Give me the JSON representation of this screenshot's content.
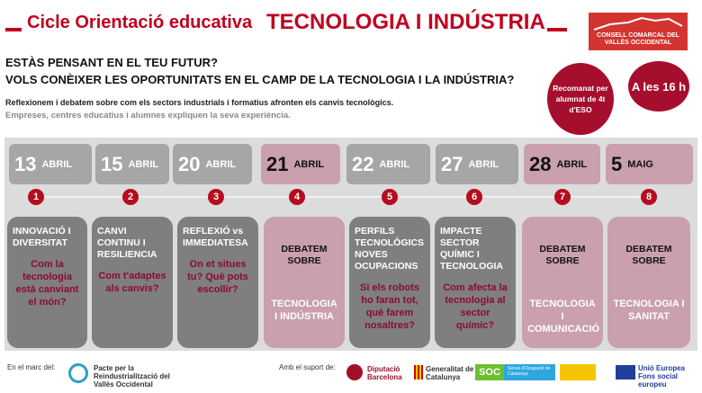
{
  "header": {
    "series": "Cicle Orientació educativa",
    "theme": "TECNOLOGIA I INDÚSTRIA",
    "logo": "CONSELL COMARCAL DEL VALLÈS OCCIDENTAL"
  },
  "intro": {
    "q1": "ESTÀS PENSANT EN EL TEU FUTUR?",
    "q2": "VOLS CONÈIXER LES OPORTUNITATS EN EL CAMP DE LA TECNOLOGIA I LA INDÚSTRIA?",
    "d1": "Reflexionem i debatem sobre com els sectors industrials i formatius afronten els canvis tecnològics.",
    "d2": "Empreses, centres educatius i alumnes expliquen la seva experiència."
  },
  "badges": {
    "recommended": "Recomanat per alumnat de 4t d'ESO",
    "time": "A les 16 h"
  },
  "sessions": [
    {
      "num": "1",
      "day": "13",
      "month": "ABRIL",
      "title": "INNOVACIÓ I DIVERSITAT",
      "question": "Com la tecnologia està canviant el món?",
      "debate": false
    },
    {
      "num": "2",
      "day": "15",
      "month": "ABRIL",
      "title": "CANVI CONTINU I RESILIENCIA",
      "question": "Com t'adaptes als canvis?",
      "debate": false
    },
    {
      "num": "3",
      "day": "20",
      "month": "ABRIL",
      "title": "REFLEXIÓ vs IMMEDIATESA",
      "question": "On et situes tu? Què pots escollir?",
      "debate": false
    },
    {
      "num": "4",
      "day": "21",
      "month": "ABRIL",
      "title": "DEBATEM SOBRE",
      "question": "TECNOLOGIA I INDÚSTRIA",
      "debate": true
    },
    {
      "num": "5",
      "day": "22",
      "month": "ABRIL",
      "title": "PERFILS TECNOLÒGICS NOVES OCUPACIONS",
      "question": "Si els robots ho faran tot, què farem nosaltres?",
      "debate": false
    },
    {
      "num": "6",
      "day": "27",
      "month": "ABRIL",
      "title": "IMPACTE SECTOR QUÍMIC I TECNOLOGIA",
      "question": "Com afecta la tecnologia al sector químic?",
      "debate": false
    },
    {
      "num": "7",
      "day": "28",
      "month": "ABRIL",
      "title": "DEBATEM SOBRE",
      "question": "TECNOLOGIA I COMUNICACIÓ",
      "debate": true
    },
    {
      "num": "8",
      "day": "5",
      "month": "MAIG",
      "title": "DEBATEM SOBRE",
      "question": "TECNOLOGIA I SANITAT",
      "debate": true
    }
  ],
  "footer": {
    "framework_label": "En el marc del:",
    "pacte": "Pacte per la Reindustrialització del Vallès Occidental",
    "support_label": "Amb el suport de:",
    "diputacio": "Diputació Barcelona",
    "generalitat": "Generalitat de Catalunya",
    "soc": "SOC",
    "soc_sub": "Servei d'Ocupació de Catalunya",
    "ue": "Unió Europea Fons social europeu"
  }
}
